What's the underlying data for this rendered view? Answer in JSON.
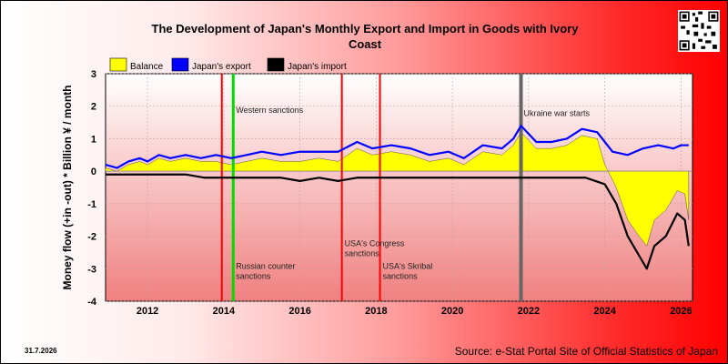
{
  "date_stamp": "31.7.2026",
  "source": "Source: e-Stat Portal Site of Official Statistics of Japan",
  "colors": {
    "balance": "#ffff00",
    "export": "#0000ff",
    "import": "#000000",
    "sanction_marker": "#ff0000",
    "russia_counter_marker": "#00dd00",
    "war_marker": "#666666"
  },
  "chart_data": {
    "type": "line",
    "title": "The Development of Japan's Monthly Export and Import in Goods with Ivory Coast",
    "ylabel": "Money flow (+in -out) * Billion ¥ / month",
    "xlabel": "",
    "xlim": [
      2010.9,
      2026.3
    ],
    "ylim": [
      -4,
      3
    ],
    "y_ticks": [
      3,
      2,
      1,
      0,
      -1,
      -2,
      -3,
      -4
    ],
    "x_ticks": [
      2012,
      2014,
      2016,
      2018,
      2020,
      2022,
      2024,
      2026
    ],
    "grid": true,
    "legend_position": "top-left",
    "legend": [
      "Balance",
      "Japan's export",
      "Japan's import"
    ],
    "series": [
      {
        "name": "Japan's export",
        "points": [
          [
            2010.9,
            0.2
          ],
          [
            2011.2,
            0.1
          ],
          [
            2011.5,
            0.3
          ],
          [
            2011.8,
            0.4
          ],
          [
            2012.0,
            0.3
          ],
          [
            2012.3,
            0.5
          ],
          [
            2012.6,
            0.4
          ],
          [
            2013.0,
            0.5
          ],
          [
            2013.4,
            0.4
          ],
          [
            2013.8,
            0.5
          ],
          [
            2014.2,
            0.4
          ],
          [
            2014.6,
            0.5
          ],
          [
            2015.0,
            0.6
          ],
          [
            2015.5,
            0.5
          ],
          [
            2016.0,
            0.6
          ],
          [
            2016.5,
            0.6
          ],
          [
            2017.0,
            0.6
          ],
          [
            2017.5,
            0.9
          ],
          [
            2017.9,
            0.7
          ],
          [
            2018.4,
            0.8
          ],
          [
            2018.9,
            0.7
          ],
          [
            2019.4,
            0.5
          ],
          [
            2019.9,
            0.6
          ],
          [
            2020.3,
            0.4
          ],
          [
            2020.8,
            0.8
          ],
          [
            2021.3,
            0.7
          ],
          [
            2021.6,
            1.0
          ],
          [
            2021.8,
            1.4
          ],
          [
            2022.2,
            0.9
          ],
          [
            2022.6,
            0.9
          ],
          [
            2023.0,
            1.0
          ],
          [
            2023.4,
            1.3
          ],
          [
            2023.8,
            1.2
          ],
          [
            2024.2,
            0.6
          ],
          [
            2024.6,
            0.5
          ],
          [
            2025.0,
            0.7
          ],
          [
            2025.4,
            0.8
          ],
          [
            2025.8,
            0.7
          ],
          [
            2026.0,
            0.8
          ],
          [
            2026.2,
            0.8
          ]
        ]
      },
      {
        "name": "Japan's import",
        "points": [
          [
            2010.9,
            -0.1
          ],
          [
            2011.5,
            -0.1
          ],
          [
            2012.0,
            -0.1
          ],
          [
            2012.5,
            -0.1
          ],
          [
            2013.0,
            -0.1
          ],
          [
            2013.5,
            -0.2
          ],
          [
            2014.0,
            -0.2
          ],
          [
            2014.5,
            -0.2
          ],
          [
            2015.0,
            -0.2
          ],
          [
            2015.5,
            -0.2
          ],
          [
            2016.0,
            -0.3
          ],
          [
            2016.5,
            -0.2
          ],
          [
            2017.0,
            -0.3
          ],
          [
            2017.5,
            -0.2
          ],
          [
            2018.0,
            -0.2
          ],
          [
            2018.5,
            -0.2
          ],
          [
            2019.0,
            -0.2
          ],
          [
            2019.5,
            -0.2
          ],
          [
            2020.0,
            -0.2
          ],
          [
            2020.5,
            -0.2
          ],
          [
            2021.0,
            -0.2
          ],
          [
            2021.5,
            -0.2
          ],
          [
            2022.0,
            -0.2
          ],
          [
            2022.5,
            -0.2
          ],
          [
            2023.0,
            -0.2
          ],
          [
            2023.5,
            -0.2
          ],
          [
            2024.0,
            -0.4
          ],
          [
            2024.3,
            -1.0
          ],
          [
            2024.6,
            -2.0
          ],
          [
            2024.9,
            -2.6
          ],
          [
            2025.1,
            -3.0
          ],
          [
            2025.3,
            -2.3
          ],
          [
            2025.6,
            -2.0
          ],
          [
            2025.9,
            -1.3
          ],
          [
            2026.1,
            -1.5
          ],
          [
            2026.2,
            -2.3
          ]
        ]
      },
      {
        "name": "Balance",
        "points": [
          [
            2010.9,
            0.1
          ],
          [
            2011.2,
            0.0
          ],
          [
            2011.5,
            0.2
          ],
          [
            2011.8,
            0.3
          ],
          [
            2012.0,
            0.2
          ],
          [
            2012.3,
            0.4
          ],
          [
            2012.6,
            0.3
          ],
          [
            2013.0,
            0.4
          ],
          [
            2013.4,
            0.3
          ],
          [
            2013.8,
            0.3
          ],
          [
            2014.2,
            0.2
          ],
          [
            2014.6,
            0.3
          ],
          [
            2015.0,
            0.4
          ],
          [
            2015.5,
            0.3
          ],
          [
            2016.0,
            0.3
          ],
          [
            2016.5,
            0.4
          ],
          [
            2017.0,
            0.3
          ],
          [
            2017.5,
            0.7
          ],
          [
            2017.9,
            0.5
          ],
          [
            2018.4,
            0.6
          ],
          [
            2018.9,
            0.5
          ],
          [
            2019.4,
            0.3
          ],
          [
            2019.9,
            0.4
          ],
          [
            2020.3,
            0.2
          ],
          [
            2020.8,
            0.6
          ],
          [
            2021.3,
            0.5
          ],
          [
            2021.6,
            0.8
          ],
          [
            2021.8,
            1.2
          ],
          [
            2022.2,
            0.7
          ],
          [
            2022.6,
            0.7
          ],
          [
            2023.0,
            0.8
          ],
          [
            2023.4,
            1.1
          ],
          [
            2023.8,
            1.0
          ],
          [
            2024.0,
            0.2
          ],
          [
            2024.3,
            -0.5
          ],
          [
            2024.6,
            -1.5
          ],
          [
            2024.9,
            -2.0
          ],
          [
            2025.1,
            -2.3
          ],
          [
            2025.3,
            -1.5
          ],
          [
            2025.6,
            -1.2
          ],
          [
            2025.9,
            -0.6
          ],
          [
            2026.1,
            -0.7
          ],
          [
            2026.2,
            -1.5
          ]
        ]
      }
    ],
    "events": [
      {
        "x": 2013.95,
        "label": "",
        "color": "#ff0000",
        "width": 2
      },
      {
        "x": 2014.25,
        "label": "Western sanctions",
        "color": "#00dd00",
        "width": 3,
        "label_y": 1.8
      },
      {
        "x": 2014.25,
        "label": "Russian counter sanctions",
        "color": "#00dd00",
        "width": 0,
        "label_y": -3.0
      },
      {
        "x": 2017.1,
        "label": "USA's Congress sanctions",
        "color": "#ff0000",
        "width": 2,
        "label_y": -2.3
      },
      {
        "x": 2018.1,
        "label": "USA's Skribal sanctions",
        "color": "#ff0000",
        "width": 2,
        "label_y": -3.0
      },
      {
        "x": 2021.8,
        "label": "Ukraine war starts",
        "color": "#666666",
        "width": 4,
        "label_y": 1.7
      }
    ]
  }
}
